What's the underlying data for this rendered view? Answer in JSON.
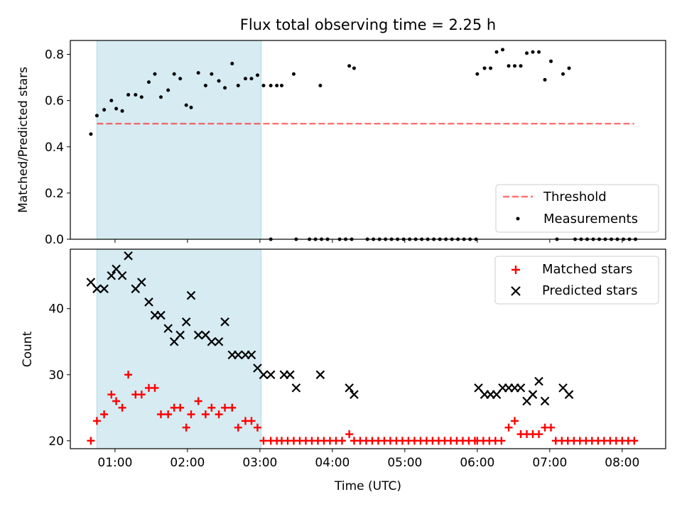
{
  "title": "Flux total observing time = 2.25 h",
  "colors": {
    "shade": "#add8e6",
    "threshold": "#ff0000",
    "matched": "#ff0000",
    "predicted": "#000000",
    "measurements": "#000000"
  },
  "chart_data": [
    {
      "type": "scatter",
      "xlabel": "",
      "ylabel": "Matched/Predicted stars",
      "xlim": [
        "00:23",
        "08:36"
      ],
      "ylim": [
        0,
        0.86
      ],
      "yticks": [
        "0.0",
        "0.2",
        "0.4",
        "0.6",
        "0.8"
      ],
      "grid": false,
      "legend_position": "lower-right",
      "shaded_interval": [
        "00:45",
        "03:01"
      ],
      "threshold": {
        "name": "Threshold",
        "value": 0.5,
        "x_range": [
          "00:45",
          "08:10"
        ],
        "style": "dashed"
      },
      "series": [
        {
          "name": "Measurements",
          "marker": "dot",
          "points": [
            [
              "00:40",
              0.455
            ],
            [
              "00:45",
              0.535
            ],
            [
              "00:51",
              0.56
            ],
            [
              "00:57",
              0.6
            ],
            [
              "01:01",
              0.565
            ],
            [
              "01:06",
              0.555
            ],
            [
              "01:11",
              0.625
            ],
            [
              "01:17",
              0.625
            ],
            [
              "01:22",
              0.615
            ],
            [
              "01:28",
              0.68
            ],
            [
              "01:33",
              0.715
            ],
            [
              "01:38",
              0.615
            ],
            [
              "01:44",
              0.645
            ],
            [
              "01:49",
              0.715
            ],
            [
              "01:54",
              0.695
            ],
            [
              "01:59",
              0.58
            ],
            [
              "02:03",
              0.57
            ],
            [
              "02:09",
              0.72
            ],
            [
              "02:15",
              0.665
            ],
            [
              "02:20",
              0.715
            ],
            [
              "02:26",
              0.685
            ],
            [
              "02:31",
              0.655
            ],
            [
              "02:37",
              0.76
            ],
            [
              "02:42",
              0.665
            ],
            [
              "02:48",
              0.695
            ],
            [
              "02:53",
              0.695
            ],
            [
              "02:58",
              0.71
            ],
            [
              "03:03",
              0.665
            ],
            [
              "03:09",
              0.665
            ],
            [
              "03:14",
              0.665
            ],
            [
              "03:18",
              0.665
            ],
            [
              "03:28",
              0.715
            ],
            [
              "03:50",
              0.665
            ],
            [
              "04:14",
              0.75
            ],
            [
              "04:18",
              0.74
            ],
            [
              "03:09",
              0
            ],
            [
              "03:30",
              0
            ],
            [
              "03:41",
              0
            ],
            [
              "03:46",
              0
            ],
            [
              "03:51",
              0
            ],
            [
              "03:56",
              0
            ],
            [
              "04:06",
              0
            ],
            [
              "04:11",
              0
            ],
            [
              "04:16",
              0
            ],
            [
              "04:29",
              0
            ],
            [
              "04:34",
              0
            ],
            [
              "04:39",
              0
            ],
            [
              "04:44",
              0
            ],
            [
              "04:49",
              0
            ],
            [
              "04:54",
              0
            ],
            [
              "04:59",
              0
            ],
            [
              "05:04",
              0
            ],
            [
              "05:09",
              0
            ],
            [
              "05:14",
              0
            ],
            [
              "05:19",
              0
            ],
            [
              "05:24",
              0
            ],
            [
              "05:29",
              0
            ],
            [
              "05:34",
              0
            ],
            [
              "05:39",
              0
            ],
            [
              "05:44",
              0
            ],
            [
              "05:49",
              0
            ],
            [
              "05:54",
              0
            ],
            [
              "05:59",
              0
            ],
            [
              "06:00",
              0.715
            ],
            [
              "06:06",
              0.74
            ],
            [
              "06:11",
              0.74
            ],
            [
              "06:16",
              0.81
            ],
            [
              "06:21",
              0.82
            ],
            [
              "06:26",
              0.75
            ],
            [
              "06:31",
              0.75
            ],
            [
              "06:36",
              0.75
            ],
            [
              "06:41",
              0.805
            ],
            [
              "06:46",
              0.81
            ],
            [
              "06:51",
              0.81
            ],
            [
              "06:56",
              0.69
            ],
            [
              "07:01",
              0.77
            ],
            [
              "07:11",
              0.715
            ],
            [
              "07:16",
              0.74
            ],
            [
              "07:06",
              0
            ],
            [
              "07:21",
              0
            ],
            [
              "07:26",
              0
            ],
            [
              "07:31",
              0
            ],
            [
              "07:36",
              0
            ],
            [
              "07:41",
              0
            ],
            [
              "07:46",
              0
            ],
            [
              "07:51",
              0
            ],
            [
              "07:56",
              0
            ],
            [
              "08:01",
              0
            ],
            [
              "08:06",
              0
            ],
            [
              "08:11",
              0
            ]
          ]
        }
      ]
    },
    {
      "type": "scatter",
      "xlabel": "Time (UTC)",
      "ylabel": "Count",
      "xlim": [
        "00:23",
        "08:36"
      ],
      "ylim": [
        18.8,
        49
      ],
      "xticks": [
        "01:00",
        "02:00",
        "03:00",
        "04:00",
        "05:00",
        "06:00",
        "07:00",
        "08:00"
      ],
      "yticks": [
        "20",
        "30",
        "40"
      ],
      "grid": false,
      "legend_position": "upper-right",
      "shaded_interval": [
        "00:45",
        "03:01"
      ],
      "series": [
        {
          "name": "Matched stars",
          "marker": "plus",
          "points": [
            [
              "00:40",
              20
            ],
            [
              "00:45",
              23
            ],
            [
              "00:51",
              24
            ],
            [
              "00:57",
              27
            ],
            [
              "01:01",
              26
            ],
            [
              "01:06",
              25
            ],
            [
              "01:11",
              30
            ],
            [
              "01:17",
              27
            ],
            [
              "01:22",
              27
            ],
            [
              "01:28",
              28
            ],
            [
              "01:33",
              28
            ],
            [
              "01:38",
              24
            ],
            [
              "01:44",
              24
            ],
            [
              "01:49",
              25
            ],
            [
              "01:54",
              25
            ],
            [
              "01:59",
              22
            ],
            [
              "02:03",
              24
            ],
            [
              "02:09",
              26
            ],
            [
              "02:15",
              24
            ],
            [
              "02:20",
              25
            ],
            [
              "02:26",
              24
            ],
            [
              "02:31",
              25
            ],
            [
              "02:37",
              25
            ],
            [
              "02:42",
              22
            ],
            [
              "02:48",
              23
            ],
            [
              "02:53",
              23
            ],
            [
              "02:58",
              22
            ],
            [
              "03:03",
              20
            ],
            [
              "03:09",
              20
            ],
            [
              "03:14",
              20
            ],
            [
              "03:18",
              20
            ],
            [
              "03:23",
              20
            ],
            [
              "03:28",
              20
            ],
            [
              "03:33",
              20
            ],
            [
              "03:38",
              20
            ],
            [
              "03:43",
              20
            ],
            [
              "03:48",
              20
            ],
            [
              "03:53",
              20
            ],
            [
              "03:58",
              20
            ],
            [
              "04:03",
              20
            ],
            [
              "04:08",
              20
            ],
            [
              "04:14",
              21
            ],
            [
              "04:18",
              20
            ],
            [
              "04:23",
              20
            ],
            [
              "04:28",
              20
            ],
            [
              "04:33",
              20
            ],
            [
              "04:38",
              20
            ],
            [
              "04:43",
              20
            ],
            [
              "04:48",
              20
            ],
            [
              "04:53",
              20
            ],
            [
              "04:58",
              20
            ],
            [
              "05:03",
              20
            ],
            [
              "05:08",
              20
            ],
            [
              "05:13",
              20
            ],
            [
              "05:18",
              20
            ],
            [
              "05:23",
              20
            ],
            [
              "05:28",
              20
            ],
            [
              "05:33",
              20
            ],
            [
              "05:38",
              20
            ],
            [
              "05:43",
              20
            ],
            [
              "05:48",
              20
            ],
            [
              "05:53",
              20
            ],
            [
              "05:58",
              20
            ],
            [
              "06:00",
              20
            ],
            [
              "06:05",
              20
            ],
            [
              "06:10",
              20
            ],
            [
              "06:15",
              20
            ],
            [
              "06:20",
              20
            ],
            [
              "06:26",
              22
            ],
            [
              "06:31",
              23
            ],
            [
              "06:36",
              21
            ],
            [
              "06:41",
              21
            ],
            [
              "06:46",
              21
            ],
            [
              "06:51",
              21
            ],
            [
              "06:56",
              22
            ],
            [
              "07:01",
              22
            ],
            [
              "07:05",
              20
            ],
            [
              "07:10",
              20
            ],
            [
              "07:15",
              20
            ],
            [
              "07:20",
              20
            ],
            [
              "07:25",
              20
            ],
            [
              "07:30",
              20
            ],
            [
              "07:35",
              20
            ],
            [
              "07:40",
              20
            ],
            [
              "07:45",
              20
            ],
            [
              "07:50",
              20
            ],
            [
              "07:55",
              20
            ],
            [
              "08:00",
              20
            ],
            [
              "08:05",
              20
            ],
            [
              "08:10",
              20
            ]
          ]
        },
        {
          "name": "Predicted stars",
          "marker": "x",
          "points": [
            [
              "00:40",
              44
            ],
            [
              "00:45",
              43
            ],
            [
              "00:51",
              43
            ],
            [
              "00:57",
              45
            ],
            [
              "01:01",
              46
            ],
            [
              "01:06",
              45
            ],
            [
              "01:11",
              48
            ],
            [
              "01:17",
              43
            ],
            [
              "01:22",
              44
            ],
            [
              "01:28",
              41
            ],
            [
              "01:33",
              39
            ],
            [
              "01:38",
              39
            ],
            [
              "01:44",
              37
            ],
            [
              "01:49",
              35
            ],
            [
              "01:54",
              36
            ],
            [
              "01:59",
              38
            ],
            [
              "02:03",
              42
            ],
            [
              "02:09",
              36
            ],
            [
              "02:15",
              36
            ],
            [
              "02:20",
              35
            ],
            [
              "02:26",
              35
            ],
            [
              "02:31",
              38
            ],
            [
              "02:37",
              33
            ],
            [
              "02:42",
              33
            ],
            [
              "02:48",
              33
            ],
            [
              "02:53",
              33
            ],
            [
              "02:58",
              31
            ],
            [
              "03:03",
              30
            ],
            [
              "03:09",
              30
            ],
            [
              "03:20",
              30
            ],
            [
              "03:25",
              30
            ],
            [
              "03:30",
              28
            ],
            [
              "03:50",
              30
            ],
            [
              "04:14",
              28
            ],
            [
              "04:18",
              27
            ],
            [
              "06:01",
              28
            ],
            [
              "06:06",
              27
            ],
            [
              "06:11",
              27
            ],
            [
              "06:16",
              27
            ],
            [
              "06:21",
              28
            ],
            [
              "06:26",
              28
            ],
            [
              "06:31",
              28
            ],
            [
              "06:36",
              28
            ],
            [
              "06:41",
              26
            ],
            [
              "06:46",
              27
            ],
            [
              "06:51",
              29
            ],
            [
              "06:56",
              26
            ],
            [
              "07:11",
              28
            ],
            [
              "07:16",
              27
            ]
          ]
        }
      ]
    }
  ]
}
